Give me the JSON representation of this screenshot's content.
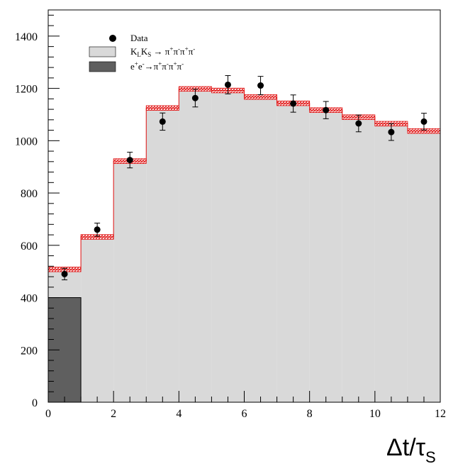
{
  "chart_data": {
    "type": "bar",
    "xlabel_main": "Δt/τ",
    "xlabel_sub": "S",
    "ylabel": "",
    "xlim": [
      0,
      12
    ],
    "ylim": [
      0,
      1500
    ],
    "x_ticks": [
      "0",
      "2",
      "4",
      "6",
      "8",
      "10",
      "12"
    ],
    "y_ticks": [
      "0",
      "200",
      "400",
      "600",
      "800",
      "1000",
      "1200",
      "1400"
    ],
    "bin_edges": [
      0,
      1,
      2,
      3,
      4,
      5,
      6,
      7,
      8,
      9,
      10,
      11,
      12
    ],
    "series": [
      {
        "name": "K_L K_S → π⁺π⁻π⁺π⁻",
        "kind": "stacked-fill",
        "values": [
          508,
          632,
          922,
          1125,
          1198,
          1192,
          1167,
          1143,
          1117,
          1090,
          1065,
          1037
        ]
      },
      {
        "name": "e⁺e⁻→π⁺π⁻π⁺π⁻",
        "kind": "background-fill",
        "values": [
          400,
          0,
          0,
          0,
          0,
          0,
          0,
          0,
          0,
          0,
          0,
          0
        ]
      },
      {
        "name": "Data",
        "kind": "points",
        "x": [
          0.5,
          1.5,
          2.5,
          3.5,
          4.5,
          5.5,
          6.5,
          7.5,
          8.5,
          9.5,
          10.5,
          11.5
        ],
        "values": [
          490,
          660,
          926,
          1073,
          1163,
          1214,
          1211,
          1142,
          1117,
          1066,
          1033,
          1073
        ],
        "errors": [
          22,
          25,
          30,
          33,
          34,
          35,
          35,
          33,
          33,
          32,
          32,
          32
        ]
      }
    ],
    "mc_band_halfwidth": 9,
    "legend_position": "top-left",
    "legend": [
      {
        "label": "Data",
        "marker": "point"
      },
      {
        "label_main": "K",
        "sub1": "L",
        "mid": "K",
        "sub2": "S",
        "tail": " → π",
        "sup1": "+",
        "t2": "π",
        "sup2": "-",
        "t3": "π",
        "sup3": "+",
        "t4": "π",
        "sup4": "-",
        "marker": "light-box"
      },
      {
        "label_main": "e",
        "sup1": "+",
        "mid": "e",
        "sup2": "-",
        "tail": "→π",
        "sup3": "+",
        "t2": "π",
        "sup4": "-",
        "t3": "π",
        "sup5": "+",
        "t4": "π",
        "sup6": "-",
        "marker": "dark-box"
      }
    ],
    "colors": {
      "signal_fill": "#d9d9d9",
      "background_fill": "#5f5f5f",
      "band": "#e01010",
      "points": "#000000"
    }
  }
}
